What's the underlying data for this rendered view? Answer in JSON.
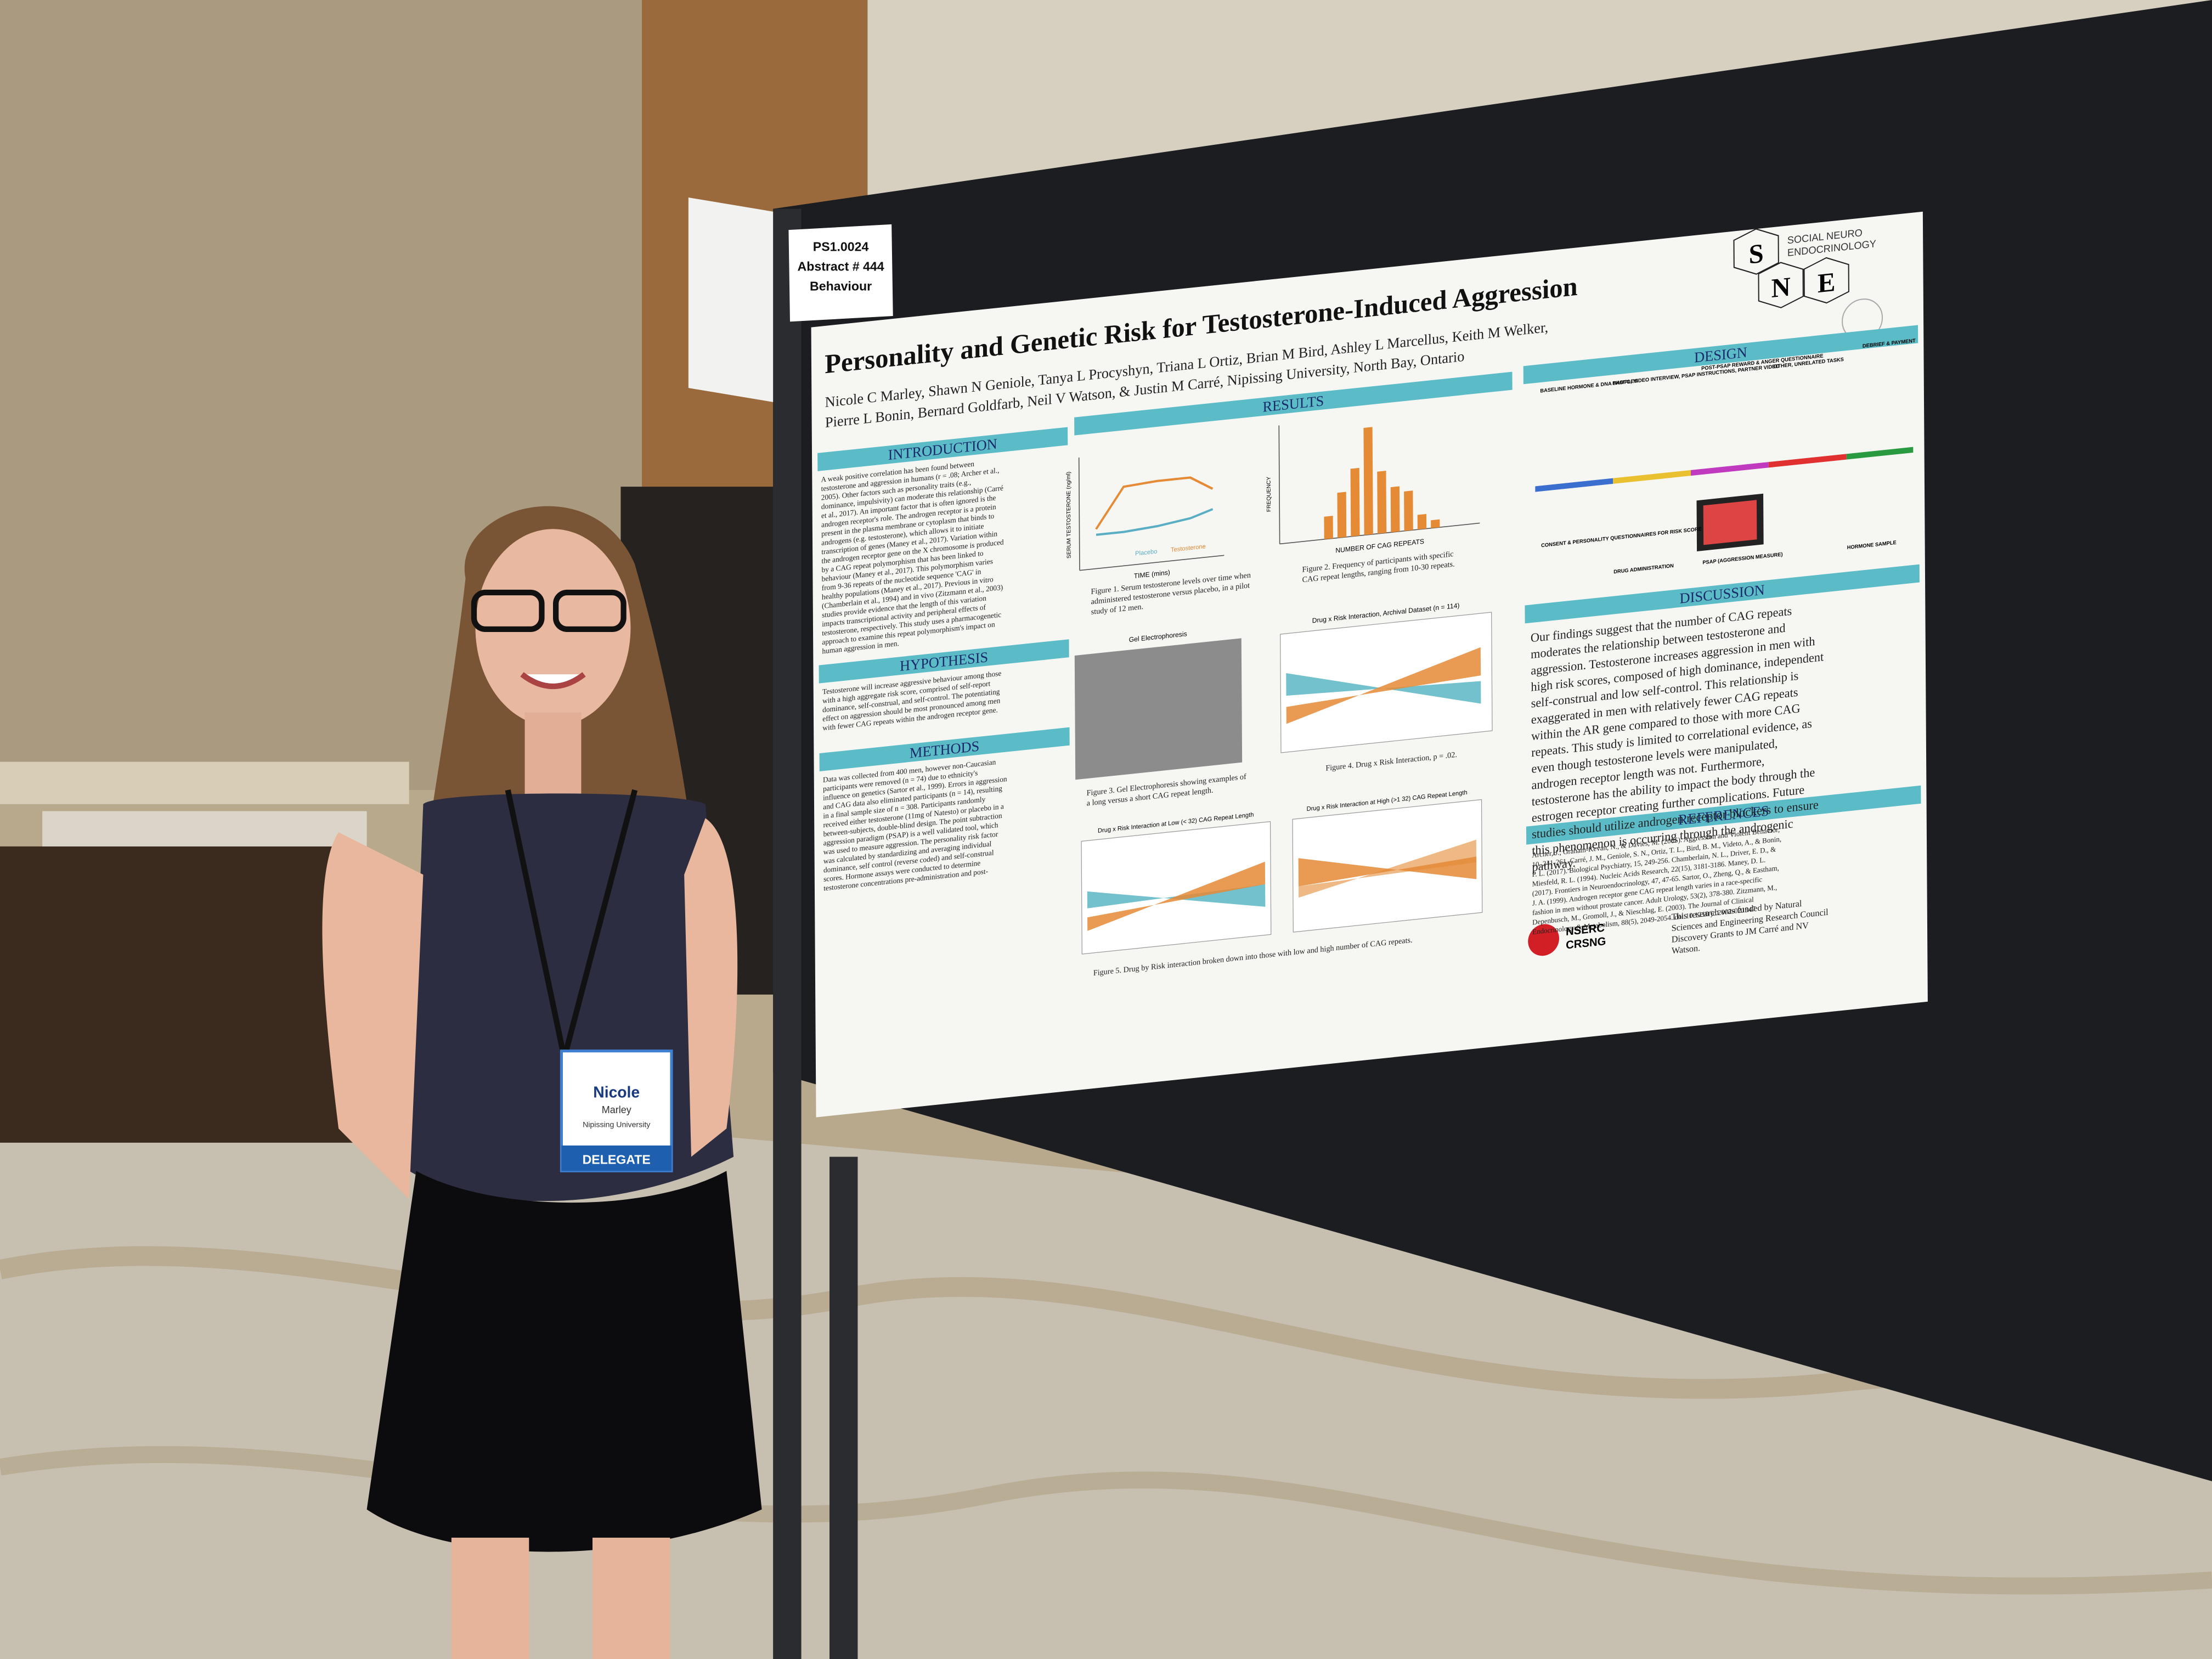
{
  "label_card": [
    "PS1.0024",
    "Abstract # 444",
    "Behaviour"
  ],
  "poster": {
    "title": "Personality and Genetic Risk for Testosterone-Induced Aggression",
    "authors": [
      "Nicole C Marley, Shawn N Geniole, Tanya L Procyshyn, Triana L Ortiz, Brian M Bird, Ashley L Marcellus, Keith M Welker,",
      "Pierre L Bonin, Bernard Goldfarb, Neil V Watson, & Justin M Carré, Nipissing University, North Bay, Ontario"
    ],
    "logo": {
      "letters": [
        "S",
        "N",
        "E"
      ],
      "name": [
        "SOCIAL NEURO",
        "ENDOCRINOLOGY"
      ]
    },
    "sections": {
      "introduction": "INTRODUCTION",
      "hypothesis": "HYPOTHESIS",
      "methods": "METHODS",
      "results": "RESULTS",
      "design": "DESIGN",
      "discussion": "DISCUSSION",
      "references": "REFERENCES"
    },
    "introduction_text": [
      "A weak positive correlation has been found between",
      "testosterone and aggression in humans (r = .08; Archer et al.,",
      "2005). Other factors such as personality traits (e.g.,",
      "dominance, impulsivity) can moderate this relationship (Carré",
      "et al., 2017). An important factor that is often ignored is the",
      "androgen receptor's role. The androgen receptor is a protein",
      "present in the plasma membrane or cytoplasm that binds to",
      "androgens (e.g. testosterone), which allows it to initiate",
      "transcription of genes (Maney et al., 2017). Variation within",
      "the androgen receptor gene on the X chromosome is produced",
      "by a CAG repeat polymorphism that has been linked to",
      "behaviour (Maney et al., 2017). This polymorphism varies",
      "from 9-36 repeats of the nucleotide sequence 'CAG' in",
      "healthy populations (Maney et al., 2017). Previous in vitro",
      "(Chamberlain et al., 1994) and in vivo (Zitzmann et al., 2003)",
      "studies provide evidence that the length of this variation",
      "impacts transcriptional activity and peripheral effects of",
      "testosterone, respectively. This study uses a pharmacogenetic",
      "approach to examine this repeat polymorphism's impact on",
      "human aggression in men."
    ],
    "hypothesis_text": [
      "Testosterone will increase aggressive behaviour among those",
      "with a high aggregate risk score, comprised of self-report",
      "dominance, self-construal, and self-control. The potentiating",
      "effect on aggression should be most pronounced among men",
      "with fewer CAG repeats within the androgen receptor gene."
    ],
    "methods_text": [
      "Data was collected from 400 men, however non-Caucasian",
      "participants were removed (n = 74) due to ethnicity's",
      "influence on genetics (Sartor et al., 1999). Errors in aggression",
      "and CAG data also eliminated participants (n = 14), resulting",
      "in a final sample size of n = 308. Participants randomly",
      "received either testosterone (11mg of Natesto) or placebo in a",
      "between-subjects, double-blind design. The point subtraction",
      "aggression paradigm (PSAP) is a well validated tool, which",
      "was used to measure aggression. The personality risk factor",
      "was calculated by standardizing and averaging individual",
      "dominance, self control (reverse coded) and self-construal",
      "scores. Hormone assays were conducted to determine",
      "testosterone concentrations pre-administration and post-"
    ],
    "figure_captions": [
      [
        "Figure 1. Serum testosterone levels over time when",
        "administered testosterone versus placebo, in a pilot",
        "study of 12 men."
      ],
      [
        "Figure 2. Frequency of participants with specific",
        "CAG repeat lengths, ranging from 10-30 repeats."
      ],
      [
        "Figure 3. Gel Electrophoresis showing examples of",
        "a long versus a short CAG repeat length."
      ],
      [
        "Figure 4. Drug x Risk Interaction, p = .02."
      ],
      [
        "Figure 5. Drug by Risk interaction broken down into those with low and high number of CAG repeats."
      ]
    ],
    "figure_titles": [
      "Gel Electrophoresis",
      "Drug x Risk Interaction, Archival Dataset (n = 114)",
      "Drug x Risk Interaction at Low (< 32) CAG Repeat Length",
      "Drug x Risk Interaction at High (>1 32) CAG Repeat Length"
    ],
    "axis_titles": [
      "TIME (mins)",
      "NUMBER OF CAG REPEATS",
      "FREQUENCY",
      "SERUM TESTOSTERONE (ng/ml)"
    ],
    "legend": [
      "Placebo",
      "Testosterone"
    ],
    "design_labels": [
      "BASELINE HORMONE & DNA SAMPLES",
      "PHOTO, VIDEO INTERVIEW, PSAP INSTRUCTIONS, PARTNER VIDEO",
      "POST-PSAP REWARD & ANGER QUESTIONNAIRE",
      "OTHER, UNRELATED TASKS",
      "DEBRIEF & PAYMENT",
      "CONSENT & PERSONALITY QUESTIONNAIRES FOR RISK SCORE",
      "DRUG ADMINISTRATION",
      "PSAP (AGGRESSION MEASURE)",
      "HORMONE SAMPLE"
    ],
    "discussion_text": [
      "Our findings suggest that the number of CAG repeats",
      "moderates the relationship between testosterone and",
      "aggression. Testosterone increases aggression in men with",
      "high risk scores, composed of high dominance, independent",
      "self-construal and low self-control. This relationship is",
      "exaggerated in men with relatively fewer CAG repeats",
      "within the AR gene compared to those with more CAG",
      "repeats. This study is limited to correlational evidence, as",
      "even though testosterone levels were manipulated,",
      "androgen receptor length was not. Furthermore,",
      "testosterone has the ability to impact the body through the",
      "estrogen receptor creating further complications. Future",
      "studies should utilize androgen receptor blockers to ensure",
      "this phenomenon is occurring through the androgenic",
      "pathway."
    ],
    "references_text": [
      "Archer, J., Graham-Kevan, N., & Davies, M. (2005). Aggression and Violent Behavior,",
      "10, 241-261. Carré, J. M., Geniole, S. N., Ortiz, T. L., Bird, B. M., Videto, A., & Bonin,",
      "P. L. (2017). Biological Psychiatry, 15, 249-256. Chamberlain, N. L., Driver, E. D., &",
      "Miesfeld, R. L. (1994). Nucleic Acids Research, 22(15), 3181-3186. Maney, D. L.",
      "(2017). Frontiers in Neuroendocrinology, 47, 47-65. Sartor, O., Zheng, Q., & Eastham,",
      "J. A. (1999). Androgen receptor gene CAG repeat length varies in a race-specific",
      "fashion in men without prostate cancer. Adult Urology, 53(2), 378-380. Zitzmann, M.,",
      "Depenbusch, M., Gromoll, J., & Nieschlag, E. (2003). The Journal of Clinical",
      "Endocrinology & Metabolism, 88(5), 2049-2054. doi:10.1210/jc.2002-021947"
    ],
    "nserc": [
      "NSERC",
      "CRSNG"
    ],
    "funding": [
      "This research was funded by Natural",
      "Sciences and Engineering Research Council",
      "Discovery Grants to JM Carré and NV",
      "Watson."
    ]
  },
  "badge": {
    "name": "Nicole",
    "surname": "Marley",
    "affiliation": "Nipissing University",
    "role": "DELEGATE"
  }
}
